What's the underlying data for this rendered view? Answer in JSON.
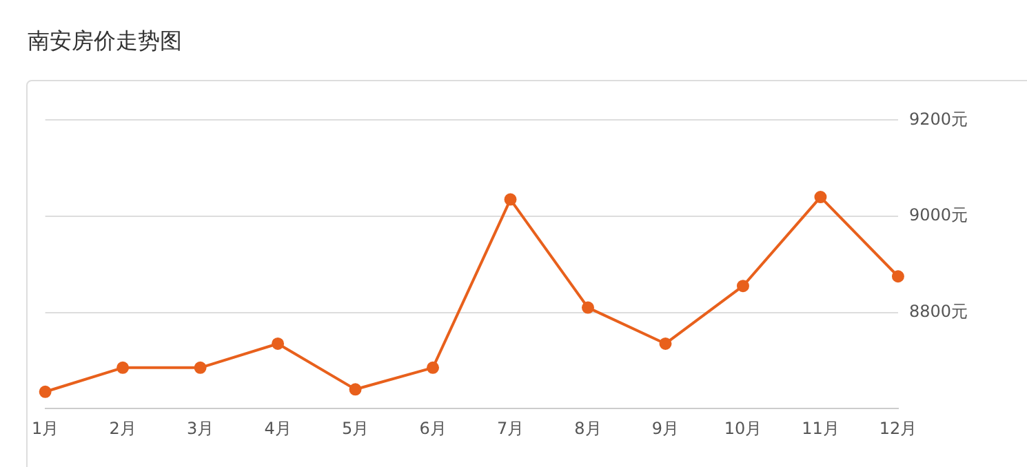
{
  "chart_data": {
    "type": "line",
    "title": "南安房价走势图",
    "categories": [
      "1月",
      "2月",
      "3月",
      "4月",
      "5月",
      "6月",
      "7月",
      "8月",
      "9月",
      "10月",
      "11月",
      "12月"
    ],
    "series": [
      {
        "color": "#e8601c",
        "values": [
          8635,
          8685,
          8685,
          8735,
          8640,
          8685,
          9035,
          8810,
          8735,
          8855,
          9040,
          8875
        ]
      }
    ],
    "ylim": [
      8600,
      9200
    ],
    "yticks": [
      {
        "value": 8600,
        "label": null
      },
      {
        "value": 8800,
        "label": "8800元"
      },
      {
        "value": 9000,
        "label": "9000元"
      },
      {
        "value": 9200,
        "label": "9200元"
      }
    ],
    "grid": "y",
    "legend": false,
    "marker": "circle",
    "line_style": "solid"
  }
}
